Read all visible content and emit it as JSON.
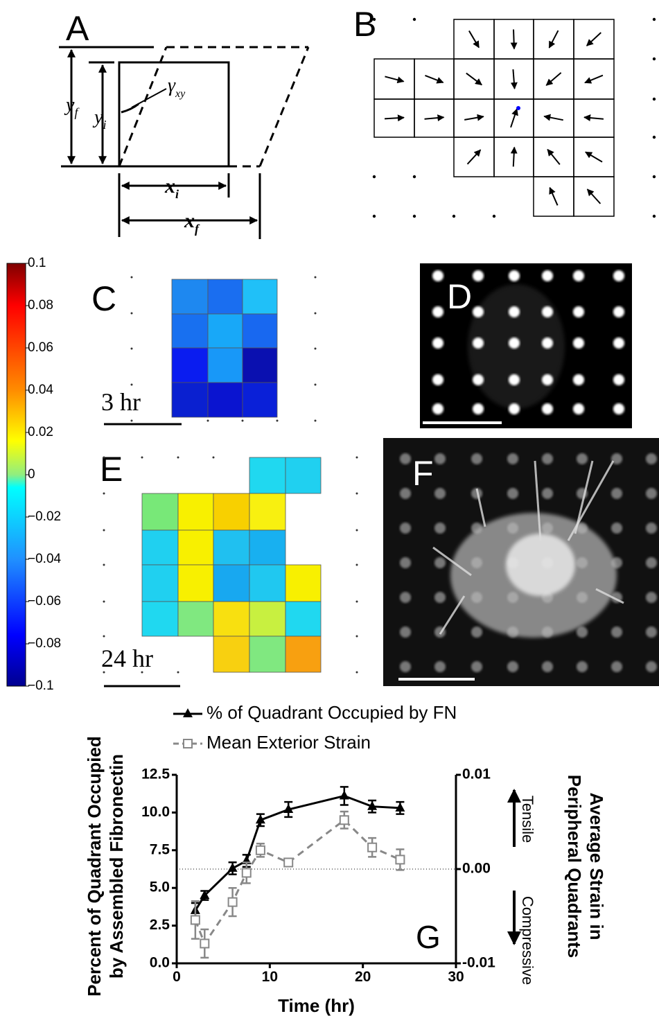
{
  "panels": {
    "A": {
      "letter": "A",
      "y_f": [
        "y",
        "f"
      ],
      "y_i": [
        "y",
        "i"
      ],
      "gamma": [
        "γ",
        "xy"
      ],
      "x_i": [
        "x",
        "i"
      ],
      "x_f": [
        "x",
        "f"
      ]
    },
    "B": {
      "letter": "B"
    },
    "C": {
      "letter": "C",
      "time": "3 hr"
    },
    "D": {
      "letter": "D"
    },
    "E": {
      "letter": "E",
      "time": "24 hr"
    },
    "F": {
      "letter": "F"
    }
  },
  "colorbar": {
    "lim": [
      -0.1,
      0.1
    ],
    "ticks": [
      0.1,
      0.08,
      0.06,
      0.04,
      0.02,
      0,
      {
        "value": -0.02,
        "label": "−0.02"
      },
      {
        "value": -0.04,
        "label": "−0.04"
      },
      {
        "value": -0.06,
        "label": "−0.06"
      },
      {
        "value": -0.08,
        "label": "−0.08"
      },
      {
        "value": -0.1,
        "label": "−0.1"
      }
    ]
  },
  "chart_data": {
    "type": "line",
    "panel_label": "G",
    "xlabel": "Time (hr)",
    "ylabel": [
      "Percent of Quadrant Occupied",
      "by Assembled Fibronectin"
    ],
    "y2label": [
      "Average Strain in",
      "Peripheral Quadrants"
    ],
    "annotations": {
      "tensile": "Tensile",
      "compressive": "Compressive"
    },
    "xlim": [
      0,
      30
    ],
    "xticks": [
      0,
      10,
      20,
      30
    ],
    "ylim": [
      0,
      12.5
    ],
    "yticks": [
      {
        "value": 0,
        "label": "0.0"
      },
      2.5,
      {
        "value": 5,
        "label": "5.0"
      },
      7.5,
      {
        "value": 10,
        "label": "10.0"
      },
      12.5
    ],
    "y2lim": [
      -0.01,
      0.01
    ],
    "y2ticks": [
      -0.01,
      {
        "value": 0,
        "label": "0.00"
      },
      0.01
    ],
    "zero_line": true,
    "series": [
      {
        "name": "% of Quadrant Occupied by FN",
        "color": "#000000",
        "marker": "triangle",
        "linestyle": "solid",
        "x": [
          2,
          3,
          6,
          7.5,
          9,
          12,
          18,
          21,
          24
        ],
        "values": [
          3.5,
          4.5,
          6.3,
          6.8,
          9.5,
          10.2,
          11.1,
          10.4,
          10.3
        ],
        "errors": [
          0.5,
          0.3,
          0.4,
          0.4,
          0.4,
          0.5,
          0.6,
          0.4,
          0.4
        ]
      },
      {
        "name": "Mean Exterior Strain",
        "color": "#888888",
        "marker": "square",
        "linestyle": "dashed",
        "axis": "y2",
        "x": [
          2,
          3,
          6,
          7.5,
          9,
          12,
          18,
          21,
          24
        ],
        "values": [
          -0.0054,
          -0.0079,
          -0.0035,
          -0.0004,
          0.002,
          0.0007,
          0.0052,
          0.0023,
          0.001
        ],
        "errors": [
          0.002,
          0.0015,
          0.0015,
          0.0011,
          0.0007,
          0.0004,
          0.0009,
          0.001,
          0.0011
        ]
      }
    ]
  }
}
